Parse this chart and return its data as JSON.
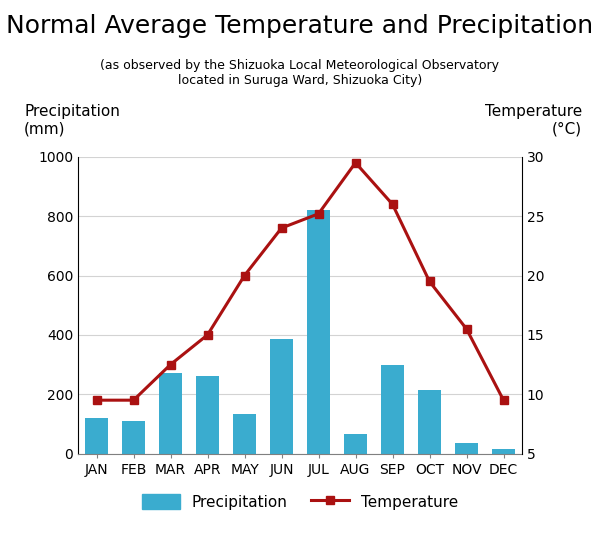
{
  "title": "Normal Average Temperature and Precipitation",
  "subtitle": "(as observed by the Shizuoka Local Meteorological Observatory\nlocated in Suruga Ward, Shizuoka City)",
  "ylabel_left_line1": "Precipitation",
  "ylabel_left_line2": "(mm)",
  "ylabel_right_line1": "Temperature",
  "ylabel_right_line2": "(°C)",
  "months": [
    "JAN",
    "FEB",
    "MAR",
    "APR",
    "MAY",
    "JUN",
    "JUL",
    "AUG",
    "SEP",
    "OCT",
    "NOV",
    "DEC"
  ],
  "precipitation": [
    120,
    110,
    270,
    260,
    135,
    385,
    820,
    65,
    300,
    215,
    35,
    15
  ],
  "temperature": [
    9.5,
    9.5,
    12.5,
    15.0,
    20.0,
    24.0,
    25.2,
    29.5,
    26.0,
    19.5,
    15.5,
    9.5
  ],
  "bar_color": "#3aaccf",
  "line_color": "#aa1111",
  "ylim_left": [
    0,
    1000
  ],
  "ylim_right": [
    5,
    30
  ],
  "yticks_left": [
    0,
    200,
    400,
    600,
    800,
    1000
  ],
  "yticks_right": [
    5,
    10,
    15,
    20,
    25,
    30
  ],
  "background_color": "#ffffff",
  "title_fontsize": 18,
  "subtitle_fontsize": 9,
  "axis_label_fontsize": 11,
  "tick_fontsize": 10,
  "legend_fontsize": 11
}
